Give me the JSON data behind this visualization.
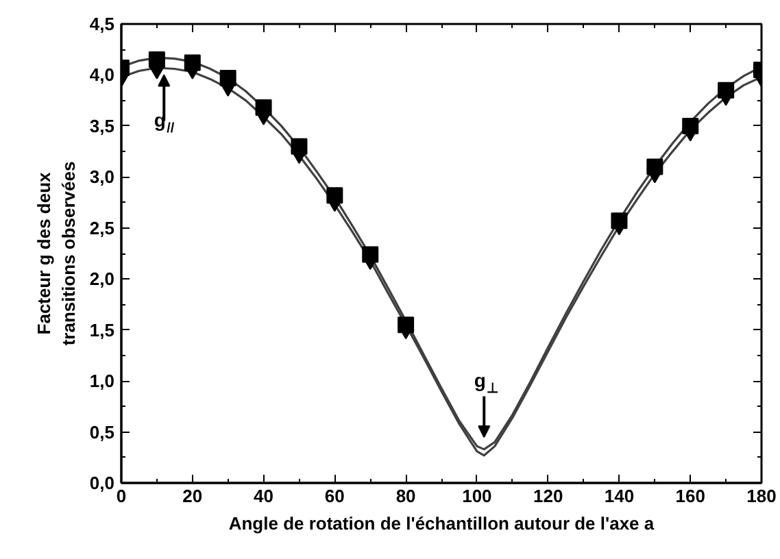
{
  "chart_data": {
    "type": "scatter",
    "xlabel": "Angle de rotation de l'échantillon autour de l'axe a",
    "ylabel": "Facteur g des deux\ntransitions observées",
    "xlim": [
      0,
      180
    ],
    "xticks": [
      0,
      20,
      40,
      60,
      80,
      100,
      120,
      140,
      160,
      180
    ],
    "ylim": [
      0,
      4.5
    ],
    "yticks": [
      {
        "value": 0,
        "label": "0,0"
      },
      {
        "value": 0.5,
        "label": "0,5"
      },
      {
        "value": 1,
        "label": "1,0"
      },
      {
        "value": 1.5,
        "label": "1,5"
      },
      {
        "value": 2,
        "label": "2,0"
      },
      {
        "value": 2.5,
        "label": "2,5"
      },
      {
        "value": 3,
        "label": "3,0"
      },
      {
        "value": 3.5,
        "label": "3,5"
      },
      {
        "value": 4,
        "label": "4,0"
      },
      {
        "value": 4.5,
        "label": "4,5"
      }
    ],
    "grid": false,
    "series": [
      {
        "type": "line",
        "color": "#404040",
        "line_style": "solid",
        "x": [
          0,
          5,
          10,
          15,
          20,
          25,
          30,
          35,
          40,
          45,
          50,
          55,
          60,
          65,
          70,
          75,
          80,
          85,
          90,
          95,
          100,
          102,
          105,
          110,
          115,
          120,
          125,
          130,
          135,
          140,
          145,
          150,
          155,
          160,
          165,
          170,
          175,
          180
        ],
        "values": [
          4.08,
          4.14,
          4.17,
          4.16,
          4.13,
          4.06,
          3.97,
          3.84,
          3.68,
          3.5,
          3.29,
          3.05,
          2.8,
          2.52,
          2.23,
          1.91,
          1.59,
          1.26,
          0.93,
          0.61,
          0.36,
          0.33,
          0.4,
          0.67,
          0.99,
          1.33,
          1.66,
          1.98,
          2.29,
          2.58,
          2.85,
          3.1,
          3.33,
          3.54,
          3.72,
          3.87,
          3.99,
          4.08
        ]
      },
      {
        "type": "line",
        "color": "#404040",
        "line_style": "solid",
        "x": [
          0,
          5,
          10,
          15,
          20,
          25,
          30,
          35,
          40,
          45,
          50,
          55,
          60,
          65,
          70,
          75,
          80,
          85,
          90,
          95,
          100,
          102,
          105,
          110,
          115,
          120,
          125,
          130,
          135,
          140,
          145,
          150,
          155,
          160,
          165,
          170,
          175,
          180
        ],
        "values": [
          3.98,
          4.04,
          4.07,
          4.06,
          4.03,
          3.96,
          3.87,
          3.75,
          3.59,
          3.42,
          3.21,
          2.98,
          2.73,
          2.46,
          2.18,
          1.86,
          1.55,
          1.23,
          0.9,
          0.58,
          0.31,
          0.27,
          0.36,
          0.64,
          0.96,
          1.29,
          1.62,
          1.93,
          2.23,
          2.52,
          2.78,
          3.03,
          3.25,
          3.46,
          3.63,
          3.78,
          3.9,
          3.98
        ]
      },
      {
        "marker": "square",
        "color": "#000000",
        "x": [
          0,
          10,
          20,
          30,
          40,
          50,
          60,
          70,
          80,
          140,
          150,
          160,
          170,
          180
        ],
        "values": [
          4.07,
          4.15,
          4.12,
          3.97,
          3.68,
          3.3,
          2.82,
          2.24,
          1.55,
          2.57,
          3.1,
          3.5,
          3.85,
          4.05
        ]
      },
      {
        "marker": "triangle",
        "color": "#000000",
        "x": [
          0,
          10,
          20,
          30,
          40,
          50,
          60,
          70,
          80,
          140,
          150,
          160,
          170,
          180
        ],
        "values": [
          3.97,
          4.05,
          4.05,
          3.88,
          3.6,
          3.22,
          2.75,
          2.18,
          1.5,
          2.52,
          3.03,
          3.44,
          3.79,
          3.97
        ]
      }
    ],
    "annotations": [
      {
        "text": "g$_{//}$",
        "x": 12,
        "y": 4.0
      },
      {
        "text": "g$_{⊥}$",
        "x": 102,
        "y": 0.33
      }
    ]
  }
}
